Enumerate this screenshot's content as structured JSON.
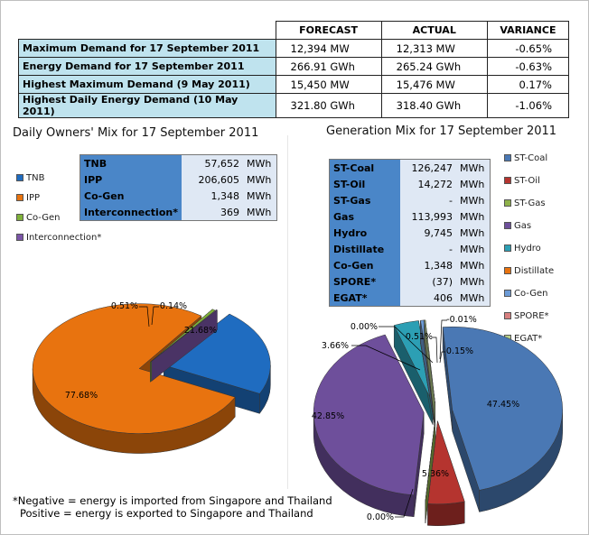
{
  "summary": {
    "headers": [
      "FORECAST",
      "ACTUAL",
      "VARIANCE"
    ],
    "rows": [
      {
        "label": "Maximum Demand for 17 September 2011",
        "forecast": "12,394  MW",
        "actual": "12,313  MW",
        "variance": "-0.65%"
      },
      {
        "label": "Energy Demand for 17 September 2011",
        "forecast": "266.91  GWh",
        "actual": "265.24  GWh",
        "variance": "-0.63%"
      },
      {
        "label": "Highest Maximum Demand (9 May 2011)",
        "forecast": "15,450  MW",
        "actual": "15,476  MW",
        "variance": "0.17%"
      },
      {
        "label": "Highest Daily Energy Demand (10 May 2011)",
        "forecast": "321.80  GWh",
        "actual": "318.40  GWh",
        "variance": "-1.06%"
      }
    ]
  },
  "owners_title": "Daily Owners' Mix for 17 September 2011",
  "generation_title": "Generation Mix for 17 September 2011",
  "owners_table": [
    {
      "k": "TNB",
      "v": "57,652",
      "u": "MWh"
    },
    {
      "k": "IPP",
      "v": "206,605",
      "u": "MWh"
    },
    {
      "k": "Co-Gen",
      "v": "1,348",
      "u": "MWh"
    },
    {
      "k": "Interconnection*",
      "v": "369",
      "u": "MWh"
    }
  ],
  "generation_table": [
    {
      "k": "ST-Coal",
      "v": "126,247",
      "u": "MWh"
    },
    {
      "k": "ST-Oil",
      "v": "14,272",
      "u": "MWh"
    },
    {
      "k": "ST-Gas",
      "v": "-",
      "u": "MWh"
    },
    {
      "k": "Gas",
      "v": "113,993",
      "u": "MWh"
    },
    {
      "k": "Hydro",
      "v": "9,745",
      "u": "MWh"
    },
    {
      "k": "Distillate",
      "v": "-",
      "u": "MWh"
    },
    {
      "k": "Co-Gen",
      "v": "1,348",
      "u": "MWh"
    },
    {
      "k": "SPORE*",
      "v": "(37)",
      "u": "MWh"
    },
    {
      "k": "EGAT*",
      "v": "406",
      "u": "MWh"
    }
  ],
  "footnote": {
    "line1": "*Negative = energy is imported from Singapore and Thailand",
    "line2": "Positive = energy is exported to Singapore and Thailand"
  },
  "chart_data": [
    {
      "type": "pie",
      "title": "Daily Owners' Mix for 17 September 2011",
      "legend_position": "left",
      "slices": [
        {
          "name": "TNB",
          "value": 21.68,
          "label": "21.68%",
          "color": "#1f6cc0"
        },
        {
          "name": "IPP",
          "value": 77.68,
          "label": "77.68%",
          "color": "#e8730f"
        },
        {
          "name": "Co-Gen",
          "value": 0.51,
          "label": "0.51%",
          "color": "#7fb13a"
        },
        {
          "name": "Interconnection*",
          "value": 0.14,
          "label": "0.14%",
          "color": "#7b55a8"
        }
      ]
    },
    {
      "type": "pie",
      "title": "Generation Mix for 17 September 2011",
      "legend_position": "right",
      "slices": [
        {
          "name": "ST-Coal",
          "value": 47.45,
          "label": "47.45%",
          "color": "#4a78b4"
        },
        {
          "name": "ST-Oil",
          "value": 5.36,
          "label": "5.36%",
          "color": "#b5342f"
        },
        {
          "name": "ST-Gas",
          "value": 0.0,
          "label": "0.00%",
          "color": "#8fb24a"
        },
        {
          "name": "Gas",
          "value": 42.85,
          "label": "42.85%",
          "color": "#6e4f9b"
        },
        {
          "name": "Hydro",
          "value": 3.66,
          "label": "3.66%",
          "color": "#2c9fb4"
        },
        {
          "name": "Distillate",
          "value": 0.0,
          "label": "0.00%",
          "color": "#e8730f"
        },
        {
          "name": "Co-Gen",
          "value": 0.51,
          "label": "0.51%",
          "color": "#6c9bd6"
        },
        {
          "name": "SPORE*",
          "value": -0.01,
          "label": "-0.01%",
          "color": "#d88080"
        },
        {
          "name": "EGAT*",
          "value": 0.15,
          "label": "0.15%",
          "color": "#b7d08a"
        }
      ]
    }
  ]
}
